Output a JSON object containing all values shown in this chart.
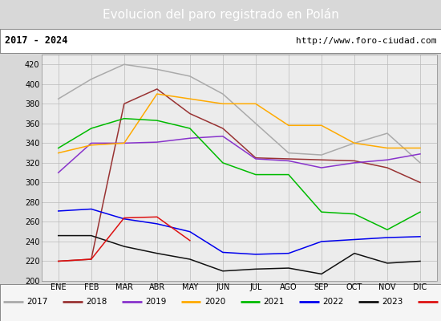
{
  "title": "Evolucion del paro registrado en Polán",
  "subtitle_left": "2017 - 2024",
  "subtitle_right": "http://www.foro-ciudad.com",
  "months": [
    "ENE",
    "FEB",
    "MAR",
    "ABR",
    "MAY",
    "JUN",
    "JUL",
    "AGO",
    "SEP",
    "OCT",
    "NOV",
    "DIC"
  ],
  "series": {
    "2017": {
      "color": "#aaaaaa",
      "data": [
        385,
        405,
        420,
        415,
        408,
        390,
        360,
        330,
        328,
        340,
        350,
        320
      ]
    },
    "2018": {
      "color": "#993333",
      "data": [
        220,
        222,
        380,
        395,
        370,
        355,
        325,
        324,
        323,
        322,
        315,
        300
      ]
    },
    "2019": {
      "color": "#8833cc",
      "data": [
        310,
        340,
        340,
        341,
        345,
        347,
        324,
        322,
        315,
        320,
        323,
        329
      ]
    },
    "2020": {
      "color": "#ffaa00",
      "data": [
        330,
        338,
        340,
        390,
        385,
        380,
        380,
        358,
        358,
        340,
        335,
        335
      ]
    },
    "2021": {
      "color": "#00bb00",
      "data": [
        335,
        355,
        365,
        363,
        355,
        320,
        308,
        308,
        270,
        268,
        252,
        270
      ]
    },
    "2022": {
      "color": "#0000ee",
      "data": [
        271,
        273,
        263,
        258,
        250,
        229,
        227,
        228,
        240,
        242,
        244,
        245
      ]
    },
    "2023": {
      "color": "#111111",
      "data": [
        246,
        246,
        235,
        228,
        222,
        210,
        212,
        213,
        207,
        228,
        218,
        220
      ]
    },
    "2024": {
      "color": "#dd1111",
      "data": [
        220,
        222,
        264,
        265,
        241,
        null,
        null,
        null,
        null,
        null,
        null,
        null
      ]
    }
  },
  "ylim": [
    200,
    430
  ],
  "yticks": [
    200,
    220,
    240,
    260,
    280,
    300,
    320,
    340,
    360,
    380,
    400,
    420
  ],
  "bg_color": "#d8d8d8",
  "plot_bg_color": "#ececec",
  "title_bg_color": "#4f86c0",
  "title_text_color": "#ffffff",
  "header_bg_color": "#ffffff",
  "grid_color": "#bbbbbb",
  "legend_bg_color": "#f5f5f5"
}
